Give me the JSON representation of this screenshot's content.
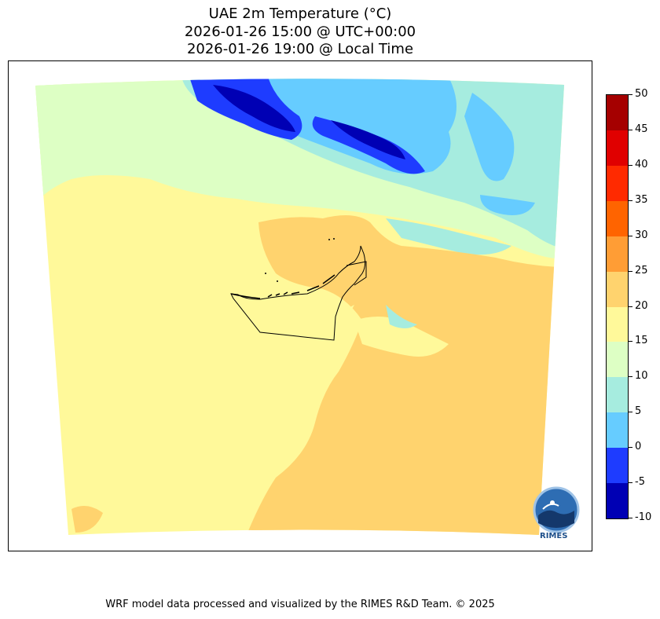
{
  "title": {
    "line1": "UAE 2m Temperature (°C)",
    "line2": "2026-01-26 15:00 @ UTC+00:00",
    "line3": "2026-01-26 19:00 @ Local Time"
  },
  "colorbar": {
    "ticks": [
      "50",
      "45",
      "40",
      "35",
      "30",
      "25",
      "20",
      "15",
      "10",
      "5",
      "0",
      "-5",
      "-10"
    ],
    "levels": [
      {
        "range": "45-50",
        "color": "#a50000"
      },
      {
        "range": "40-45",
        "color": "#e00000"
      },
      {
        "range": "35-40",
        "color": "#ff2a00"
      },
      {
        "range": "30-35",
        "color": "#ff6400"
      },
      {
        "range": "25-30",
        "color": "#ff9d35"
      },
      {
        "range": "20-25",
        "color": "#ffd36e"
      },
      {
        "range": "15-20",
        "color": "#fff99a"
      },
      {
        "range": "10-15",
        "color": "#ddffc4"
      },
      {
        "range": "5-10",
        "color": "#a6ecdf"
      },
      {
        "range": "0-5",
        "color": "#66ccff"
      },
      {
        "range": "-5-0",
        "color": "#1e3cff"
      },
      {
        "range": "-10--5",
        "color": "#0000b4"
      }
    ]
  },
  "logo": {
    "text": "RIMES"
  },
  "footer": "WRF model data processed and visualized by the RIMES R&D Team. © 2025"
}
